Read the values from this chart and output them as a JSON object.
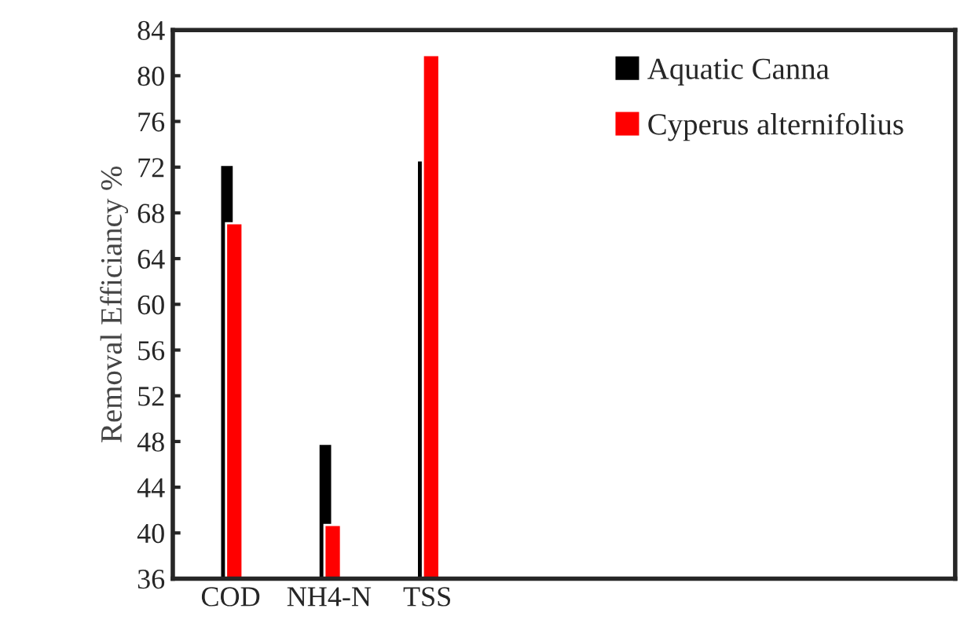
{
  "chart_data": {
    "type": "bar",
    "ylabel": "Removal Efficiancy %",
    "categories": [
      "COD",
      "NH4-N",
      "TSS"
    ],
    "series": [
      {
        "name": "Aquatic Canna",
        "color": "#000000",
        "values": [
          72.2,
          47.8,
          72.6
        ]
      },
      {
        "name": "Cyperus alternifolius",
        "color": "#ff0000",
        "values": [
          67.1,
          40.7,
          81.8
        ]
      }
    ],
    "ylim": [
      36,
      84
    ],
    "yticks": [
      36,
      40,
      44,
      48,
      52,
      56,
      60,
      64,
      68,
      72,
      76,
      80,
      84
    ],
    "legend": "top right",
    "grid": false
  }
}
